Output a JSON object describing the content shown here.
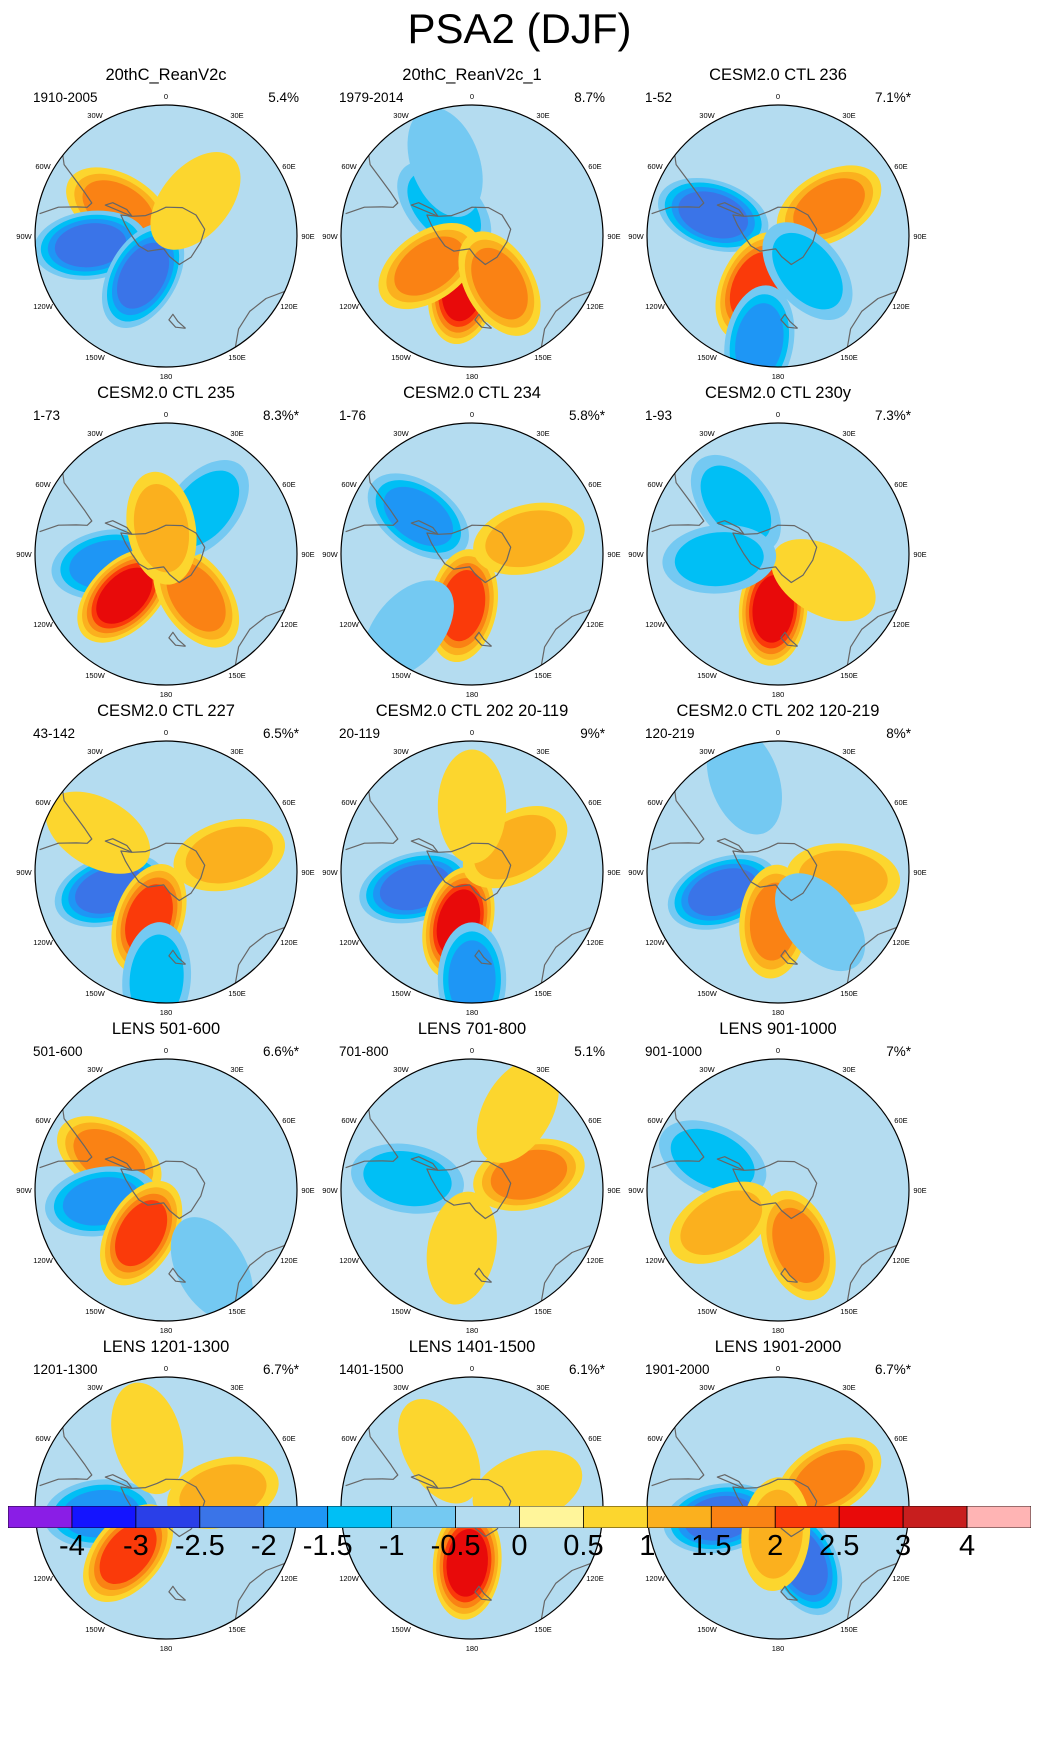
{
  "title": "PSA2 (DJF)",
  "chart_data": {
    "type": "contour_map",
    "projection": "south-polar stereographic",
    "variable": "PSA2 pattern (DJF)",
    "colorbar": {
      "levels": [
        "-4",
        "-3",
        "-2.5",
        "-2",
        "-1.5",
        "-1",
        "-0.5",
        "0",
        "0.5",
        "1",
        "1.5",
        "2",
        "2.5",
        "3",
        "4"
      ],
      "colors": [
        "#8a1de6",
        "#1414ff",
        "#2a3fe8",
        "#3a74e8",
        "#1e96f5",
        "#00bff5",
        "#74c9f2",
        "#b4dcf0",
        "#fff59a",
        "#fcd62e",
        "#fbb01e",
        "#fa8214",
        "#fa3a0a",
        "#e80a0a",
        "#c81e1e",
        "#ffb4b4"
      ]
    },
    "lon_labels": [
      "0",
      "30E",
      "60E",
      "90E",
      "120E",
      "150E",
      "180",
      "150W",
      "120W",
      "90W",
      "60W",
      "30W"
    ],
    "panels": [
      {
        "title": "20thC_ReanV2c",
        "period": "1910-2005",
        "variance": "5.4%",
        "features": [
          {
            "lon": -60,
            "r": 0.42,
            "v": 1.5
          },
          {
            "lon": -97,
            "r": 0.58,
            "v": -2.0
          },
          {
            "lon": -150,
            "r": 0.35,
            "v": -2.2
          },
          {
            "lon": 40,
            "r": 0.35,
            "v": 0.8
          }
        ]
      },
      {
        "title": "20thC_ReanV2c_1",
        "period": "1979-2014",
        "variance": "8.7%",
        "features": [
          {
            "lon": -45,
            "r": 0.3,
            "v": -1.2
          },
          {
            "lon": -170,
            "r": 0.4,
            "v": 2.8
          },
          {
            "lon": -125,
            "r": 0.4,
            "v": 1.8
          },
          {
            "lon": 150,
            "r": 0.42,
            "v": 1.5
          },
          {
            "lon": -20,
            "r": 0.6,
            "v": -0.5
          }
        ]
      },
      {
        "title": "CESM2.0 CTL 236",
        "period": "1-52",
        "variance": "7.1%*",
        "features": [
          {
            "lon": -72,
            "r": 0.52,
            "v": -2.2
          },
          {
            "lon": -155,
            "r": 0.42,
            "v": 2.3
          },
          {
            "lon": 60,
            "r": 0.45,
            "v": 1.5
          },
          {
            "lon": 140,
            "r": 0.35,
            "v": -1.0
          },
          {
            "lon": -170,
            "r": 0.82,
            "v": -1.5
          }
        ]
      },
      {
        "title": "CESM2.0 CTL 235",
        "period": "1-73",
        "variance": "8.3%*",
        "features": [
          {
            "lon": -100,
            "r": 0.45,
            "v": -1.5
          },
          {
            "lon": -135,
            "r": 0.45,
            "v": 2.5
          },
          {
            "lon": 145,
            "r": 0.4,
            "v": 1.5
          },
          {
            "lon": 40,
            "r": 0.45,
            "v": -1.2
          },
          {
            "lon": -10,
            "r": 0.2,
            "v": 1.2
          }
        ]
      },
      {
        "title": "CESM2.0 CTL 234",
        "period": "1-76",
        "variance": "5.8%*",
        "features": [
          {
            "lon": -55,
            "r": 0.5,
            "v": -1.8
          },
          {
            "lon": -170,
            "r": 0.4,
            "v": 2.2
          },
          {
            "lon": 75,
            "r": 0.45,
            "v": 1.3
          },
          {
            "lon": -140,
            "r": 0.75,
            "v": -0.8
          }
        ]
      },
      {
        "title": "CESM2.0 CTL 230y",
        "period": "1-93",
        "variance": "7.3%*",
        "features": [
          {
            "lon": -175,
            "r": 0.42,
            "v": 2.7
          },
          {
            "lon": -40,
            "r": 0.5,
            "v": -1.0
          },
          {
            "lon": 120,
            "r": 0.4,
            "v": 0.8
          },
          {
            "lon": -95,
            "r": 0.45,
            "v": -1.0
          }
        ]
      },
      {
        "title": "CESM2.0 CTL 227",
        "period": "43-142",
        "variance": "6.5%*",
        "features": [
          {
            "lon": -108,
            "r": 0.45,
            "v": -2.0
          },
          {
            "lon": -160,
            "r": 0.38,
            "v": 2.2
          },
          {
            "lon": 75,
            "r": 0.5,
            "v": 1.2
          },
          {
            "lon": -175,
            "r": 0.82,
            "v": -1.3
          },
          {
            "lon": -60,
            "r": 0.6,
            "v": 0.6
          }
        ]
      },
      {
        "title": "CESM2.0 CTL 202 20-119",
        "period": "20-119",
        "variance": "9%*",
        "features": [
          {
            "lon": -105,
            "r": 0.45,
            "v": -2.3
          },
          {
            "lon": -165,
            "r": 0.4,
            "v": 2.5
          },
          {
            "lon": 60,
            "r": 0.38,
            "v": 1.3
          },
          {
            "lon": 180,
            "r": 0.82,
            "v": -1.6
          },
          {
            "lon": 0,
            "r": 0.5,
            "v": 0.6
          }
        ]
      },
      {
        "title": "CESM2.0 CTL 202 120-219",
        "period": "120-219",
        "variance": "8%*",
        "features": [
          {
            "lon": -110,
            "r": 0.45,
            "v": -2.4
          },
          {
            "lon": -175,
            "r": 0.38,
            "v": 1.8
          },
          {
            "lon": 95,
            "r": 0.5,
            "v": 1.4
          },
          {
            "lon": -20,
            "r": 0.75,
            "v": -0.8
          },
          {
            "lon": 140,
            "r": 0.5,
            "v": -0.8
          }
        ]
      },
      {
        "title": "LENS 501-600",
        "period": "501-600",
        "variance": "6.6%*",
        "features": [
          {
            "lon": -60,
            "r": 0.5,
            "v": 1.6
          },
          {
            "lon": -100,
            "r": 0.5,
            "v": -1.6
          },
          {
            "lon": -150,
            "r": 0.38,
            "v": 2.1
          },
          {
            "lon": 150,
            "r": 0.7,
            "v": -0.8
          }
        ]
      },
      {
        "title": "LENS 701-800",
        "period": "701-800",
        "variance": "5.1%",
        "features": [
          {
            "lon": -80,
            "r": 0.5,
            "v": -1.3
          },
          {
            "lon": 75,
            "r": 0.45,
            "v": 1.8
          },
          {
            "lon": -170,
            "r": 0.45,
            "v": 0.9
          },
          {
            "lon": 30,
            "r": 0.7,
            "v": 0.8
          }
        ]
      },
      {
        "title": "LENS 901-1000",
        "period": "901-1000",
        "variance": "7%*",
        "features": [
          {
            "lon": -65,
            "r": 0.55,
            "v": -1.3
          },
          {
            "lon": -120,
            "r": 0.5,
            "v": 1.4
          },
          {
            "lon": 160,
            "r": 0.45,
            "v": 1.6
          }
        ]
      },
      {
        "title": "LENS 1201-1300",
        "period": "1201-1300",
        "variance": "6.7%*",
        "features": [
          {
            "lon": -95,
            "r": 0.5,
            "v": -1.8
          },
          {
            "lon": -140,
            "r": 0.45,
            "v": 2.3
          },
          {
            "lon": 75,
            "r": 0.45,
            "v": 1.0
          },
          {
            "lon": -15,
            "r": 0.55,
            "v": 0.8
          }
        ]
      },
      {
        "title": "LENS 1401-1500",
        "period": "1401-1500",
        "variance": "6.1%*",
        "features": [
          {
            "lon": -175,
            "r": 0.42,
            "v": 2.6
          },
          {
            "lon": 70,
            "r": 0.45,
            "v": 0.8
          },
          {
            "lon": -30,
            "r": 0.5,
            "v": 0.5
          }
        ]
      },
      {
        "title": "LENS 1901-2000",
        "period": "1901-2000",
        "variance": "6.7%*",
        "features": [
          {
            "lon": -100,
            "r": 0.45,
            "v": -2.0
          },
          {
            "lon": 60,
            "r": 0.45,
            "v": 1.8
          },
          {
            "lon": 155,
            "r": 0.45,
            "v": -2.0
          },
          {
            "lon": -175,
            "r": 0.2,
            "v": 1.2
          }
        ]
      }
    ]
  }
}
